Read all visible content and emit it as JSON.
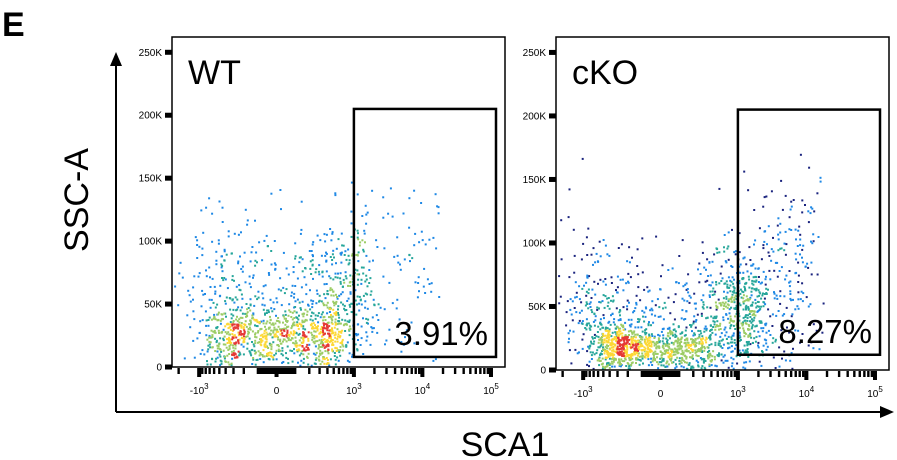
{
  "panel_label": "E",
  "colors": {
    "density_low": "#1a237e",
    "density_mid_low": "#1e88e5",
    "density_mid": "#26a69a",
    "density_mid_high": "#9ccc65",
    "density_high": "#fdd835",
    "density_peak": "#e53935",
    "frame": "#000000"
  },
  "chart_data": [
    {
      "type": "scatter",
      "subtype": "flow-cytometry-density-plot",
      "sample": "WT",
      "xlabel": "SCA1",
      "ylabel": "SSC-A",
      "x_scale": "biexponential",
      "x_ticks": [
        {
          "value": -1000,
          "base": "-10",
          "exp": "3"
        },
        {
          "value": 0,
          "base": "0",
          "exp": ""
        },
        {
          "value": 1000,
          "base": "10",
          "exp": "3"
        },
        {
          "value": 10000,
          "base": "10",
          "exp": "4"
        },
        {
          "value": 100000,
          "base": "10",
          "exp": "5"
        }
      ],
      "y_ticks": [
        {
          "value": 0,
          "label": "0"
        },
        {
          "value": 50000,
          "label": "50K"
        },
        {
          "value": 100000,
          "label": "100K"
        },
        {
          "value": 150000,
          "label": "150K"
        },
        {
          "value": 200000,
          "label": "200K"
        },
        {
          "value": 250000,
          "label": "250K"
        }
      ],
      "ylim": [
        0,
        262144
      ],
      "gate": {
        "x_min": 1000,
        "x_max": 150000,
        "y_min": 8000,
        "y_max": 205000,
        "percent": "3.91%"
      },
      "populations": [
        {
          "x_center": 0,
          "x_spread": 350,
          "y_center": 25000,
          "y_spread": 12000,
          "weight": 0.55
        },
        {
          "x_center": 300,
          "x_spread": 700,
          "y_center": 60000,
          "y_spread": 30000,
          "weight": 0.38
        },
        {
          "x_center": 4000,
          "x_spread": 6000,
          "y_center": 80000,
          "y_spread": 40000,
          "weight": 0.07
        }
      ],
      "event_count": 1500
    },
    {
      "type": "scatter",
      "subtype": "flow-cytometry-density-plot",
      "sample": "cKO",
      "xlabel": "SCA1",
      "ylabel": "SSC-A",
      "x_scale": "biexponential",
      "x_ticks": [
        {
          "value": -1000,
          "base": "-10",
          "exp": "3"
        },
        {
          "value": 0,
          "base": "0",
          "exp": ""
        },
        {
          "value": 1000,
          "base": "10",
          "exp": "3"
        },
        {
          "value": 10000,
          "base": "10",
          "exp": "4"
        },
        {
          "value": 100000,
          "base": "10",
          "exp": "5"
        }
      ],
      "y_ticks": [
        {
          "value": 0,
          "label": "0"
        },
        {
          "value": 50000,
          "label": "50K"
        },
        {
          "value": 100000,
          "label": "100K"
        },
        {
          "value": 150000,
          "label": "150K"
        },
        {
          "value": 200000,
          "label": "200K"
        },
        {
          "value": 250000,
          "label": "250K"
        }
      ],
      "ylim": [
        0,
        262144
      ],
      "gate": {
        "x_min": 1000,
        "x_max": 150000,
        "y_min": 12000,
        "y_max": 205000,
        "percent": "8.27%"
      },
      "populations": [
        {
          "x_center": -100,
          "x_spread": 250,
          "y_center": 18000,
          "y_spread": 9000,
          "weight": 0.45
        },
        {
          "x_center": 500,
          "x_spread": 900,
          "y_center": 45000,
          "y_spread": 25000,
          "weight": 0.4
        },
        {
          "x_center": 3000,
          "x_spread": 5000,
          "y_center": 70000,
          "y_spread": 40000,
          "weight": 0.15
        }
      ],
      "event_count": 2000
    }
  ]
}
